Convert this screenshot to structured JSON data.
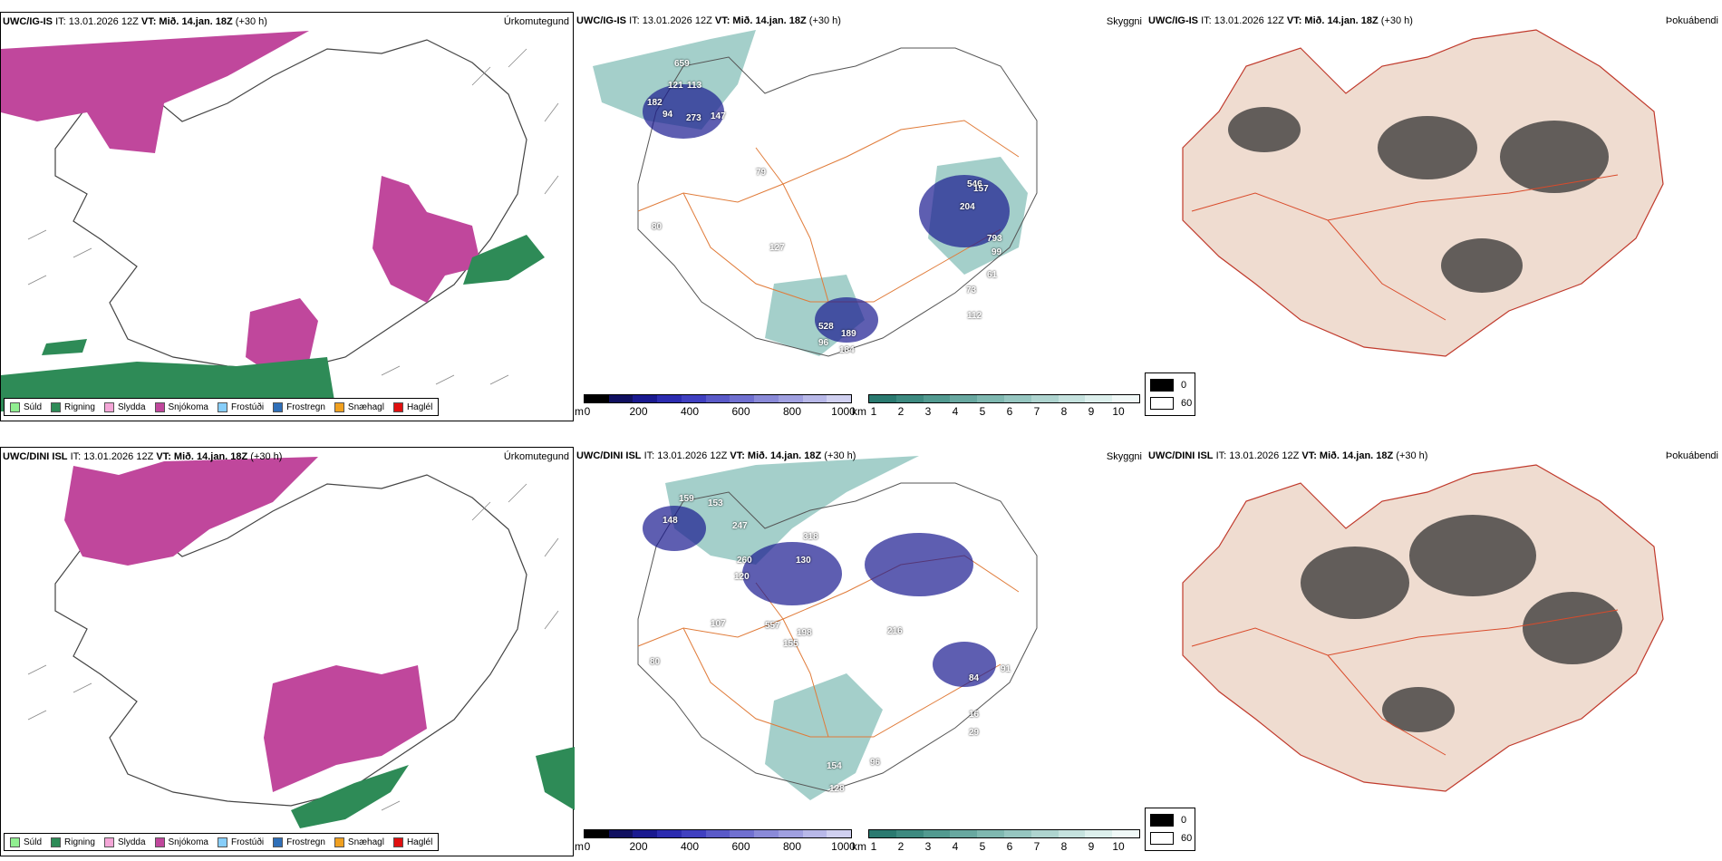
{
  "rows": [
    {
      "model": "UWC/IG-IS",
      "run_info": "IT: 13.01.2026 12Z",
      "valid_prefix": "VT:",
      "valid_time": "Mið. 14.jan. 18Z",
      "lead": "(+30 h)",
      "panels": {
        "precip_type": {
          "title": "Úrkomutegund"
        },
        "visibility": {
          "title": "Skyggni"
        },
        "fog": {
          "title": "Þokuábendi"
        }
      },
      "cloud_base_labels": [
        "659",
        "121",
        "113",
        "182",
        "94",
        "273",
        "147",
        "79",
        "127",
        "546",
        "204",
        "793",
        "61",
        "73",
        "112",
        "528",
        "96",
        "189",
        "184",
        "80",
        "157",
        "99"
      ]
    },
    {
      "model": "UWC/DINI ISL",
      "run_info": "IT: 13.01.2026 12Z",
      "valid_prefix": "VT:",
      "valid_time": "Mið. 14.jan. 18Z",
      "lead": "(+30 h)",
      "panels": {
        "precip_type": {
          "title": "Úrkomutegund"
        },
        "visibility": {
          "title": "Skyggni"
        },
        "fog": {
          "title": "Þokuábendi"
        }
      },
      "cloud_base_labels": [
        "159",
        "153",
        "148",
        "247",
        "318",
        "130",
        "260",
        "120",
        "107",
        "557",
        "155",
        "198",
        "216",
        "84",
        "91",
        "16",
        "29",
        "154",
        "128",
        "96",
        "80"
      ]
    }
  ],
  "precip_legend": [
    {
      "label": "Súld",
      "color": "#90ee90"
    },
    {
      "label": "Rigning",
      "color": "#2e8b57"
    },
    {
      "label": "Slydda",
      "color": "#f4a6d7"
    },
    {
      "label": "Snjókoma",
      "color": "#c0479c"
    },
    {
      "label": "Frostúði",
      "color": "#87cefa"
    },
    {
      "label": "Frostregn",
      "color": "#2f6fb8"
    },
    {
      "label": "Snæhagl",
      "color": "#f0a020"
    },
    {
      "label": "Haglél",
      "color": "#e01010"
    }
  ],
  "cloud_scale": {
    "unit": "m",
    "ticks": [
      "0",
      "200",
      "400",
      "600",
      "800",
      "1000"
    ],
    "colors": [
      "#000000",
      "#101060",
      "#1a1a90",
      "#2c2cb0",
      "#4040c0",
      "#5a5ac8",
      "#7070d0",
      "#8a8ad8",
      "#a0a0e0",
      "#b8b8e8",
      "#d0d0f0"
    ]
  },
  "vis_scale": {
    "unit": "km",
    "ticks": [
      "1",
      "2",
      "3",
      "4",
      "5",
      "6",
      "7",
      "8",
      "9",
      "10"
    ],
    "colors": [
      "#2a7a70",
      "#3d8a80",
      "#529a90",
      "#68a8a0",
      "#7fb8b0",
      "#96c6c0",
      "#aed4cf",
      "#c5e2de",
      "#dcefec",
      "#f0f8f7"
    ]
  },
  "fog_legend": [
    {
      "label": "0",
      "color": "#000000"
    },
    {
      "label": "60",
      "color": "#ffffff"
    }
  ],
  "colors": {
    "snow": "#c0479c",
    "rain": "#2e8b57",
    "land_fog": "#efdcd0",
    "roads": "#e07b39",
    "cloud_dark": "#1a1a90",
    "vis_teal": "#5aa89e"
  }
}
